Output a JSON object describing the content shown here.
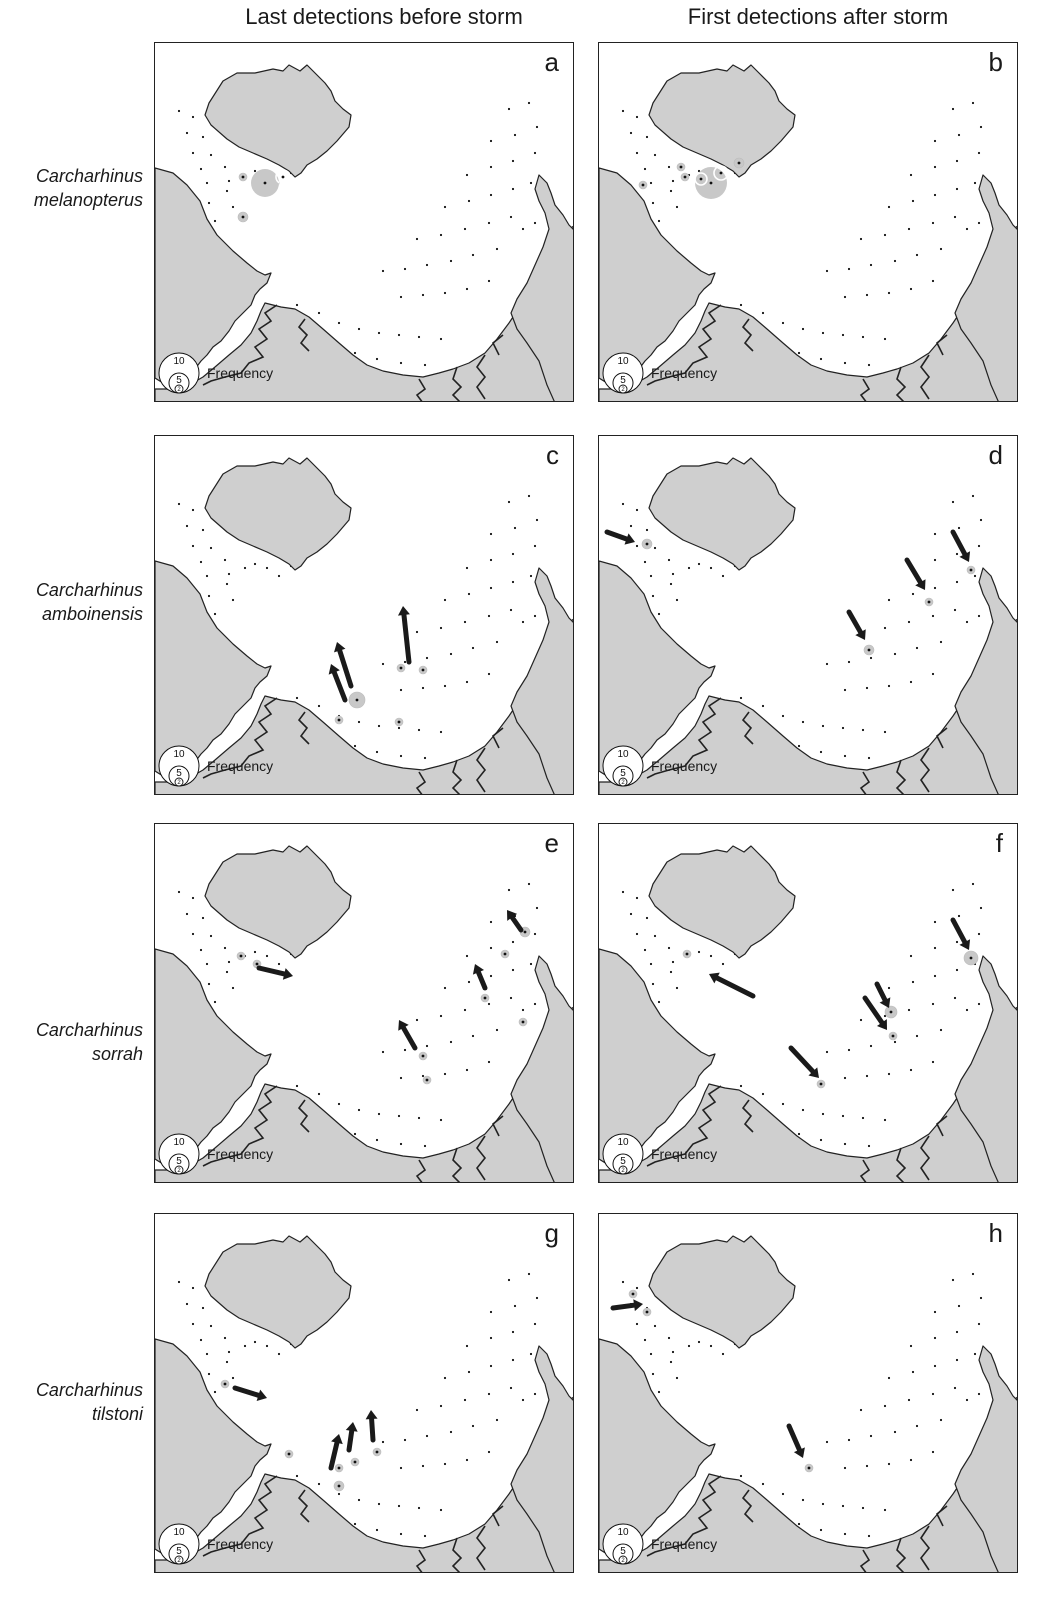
{
  "columns": [
    "Last detections before storm",
    "First detections after storm"
  ],
  "legend_label": "Frequency",
  "legend_values": [
    "10",
    "5",
    "2"
  ],
  "rows": [
    {
      "species": [
        "Carcharhinus",
        "melanopterus"
      ],
      "panels": [
        "a",
        "b"
      ]
    },
    {
      "species": [
        "Carcharhinus",
        "amboinensis"
      ],
      "panels": [
        "c",
        "d"
      ]
    },
    {
      "species": [
        "Carcharhinus",
        "sorrah"
      ],
      "panels": [
        "e",
        "f"
      ]
    },
    {
      "species": [
        "Carcharhinus",
        "tilstoni"
      ],
      "panels": [
        "g",
        "h"
      ]
    }
  ],
  "colors": {
    "land": "#cfcfcf",
    "highlight": "#c8c8c8",
    "coast": "#222222",
    "arrow": "#1a1a1a"
  }
}
